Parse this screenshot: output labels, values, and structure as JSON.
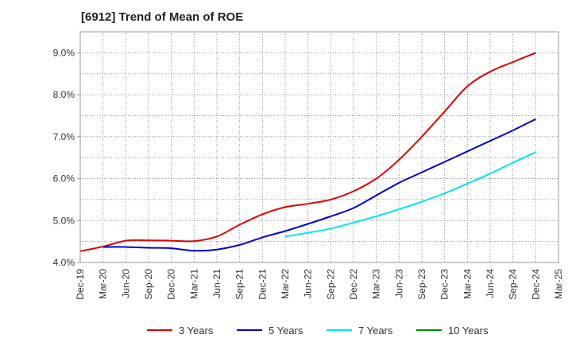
{
  "title": "[6912]  Trend of Mean of ROE",
  "chart_data": {
    "type": "line",
    "title": "[6912]  Trend of Mean of ROE",
    "xlabel": "",
    "ylabel": "",
    "x": [
      "Dec-19",
      "Mar-20",
      "Jun-20",
      "Sep-20",
      "Dec-20",
      "Mar-21",
      "Jun-21",
      "Sep-21",
      "Dec-21",
      "Mar-22",
      "Jun-22",
      "Sep-22",
      "Dec-22",
      "Mar-23",
      "Jun-23",
      "Sep-23",
      "Dec-23",
      "Mar-24",
      "Jun-24",
      "Sep-24",
      "Dec-24",
      "Mar-25"
    ],
    "ylim": [
      4.0,
      9.5
    ],
    "yticks": [
      4.0,
      5.0,
      6.0,
      7.0,
      8.0,
      9.0
    ],
    "ytick_labels": [
      "4.0%",
      "5.0%",
      "6.0%",
      "7.0%",
      "8.0%",
      "9.0%"
    ],
    "grid": true,
    "legend_position": "bottom",
    "series": [
      {
        "name": "3 Years",
        "color": "#dd0000",
        "values": [
          4.27,
          4.38,
          4.52,
          4.53,
          4.52,
          4.51,
          4.62,
          4.9,
          5.15,
          5.32,
          5.4,
          5.5,
          5.7,
          6.0,
          6.45,
          7.0,
          7.6,
          8.2,
          8.55,
          8.78,
          9.0,
          null
        ]
      },
      {
        "name": "5 Years",
        "color": "#0000cc",
        "values": [
          null,
          4.37,
          4.37,
          4.35,
          4.34,
          4.28,
          4.31,
          4.42,
          4.6,
          4.75,
          4.92,
          5.1,
          5.3,
          5.6,
          5.9,
          6.15,
          6.4,
          6.65,
          6.9,
          7.15,
          7.42,
          null
        ]
      },
      {
        "name": "7 Years",
        "color": "#00e5ee",
        "values": [
          null,
          null,
          null,
          null,
          null,
          null,
          null,
          null,
          null,
          4.62,
          4.71,
          4.81,
          4.95,
          5.1,
          5.27,
          5.45,
          5.65,
          5.88,
          6.12,
          6.38,
          6.63,
          null
        ]
      },
      {
        "name": "10 Years",
        "color": "#008800",
        "values": [
          null,
          null,
          null,
          null,
          null,
          null,
          null,
          null,
          null,
          null,
          null,
          null,
          null,
          null,
          null,
          null,
          null,
          null,
          null,
          null,
          null,
          null
        ]
      }
    ]
  }
}
